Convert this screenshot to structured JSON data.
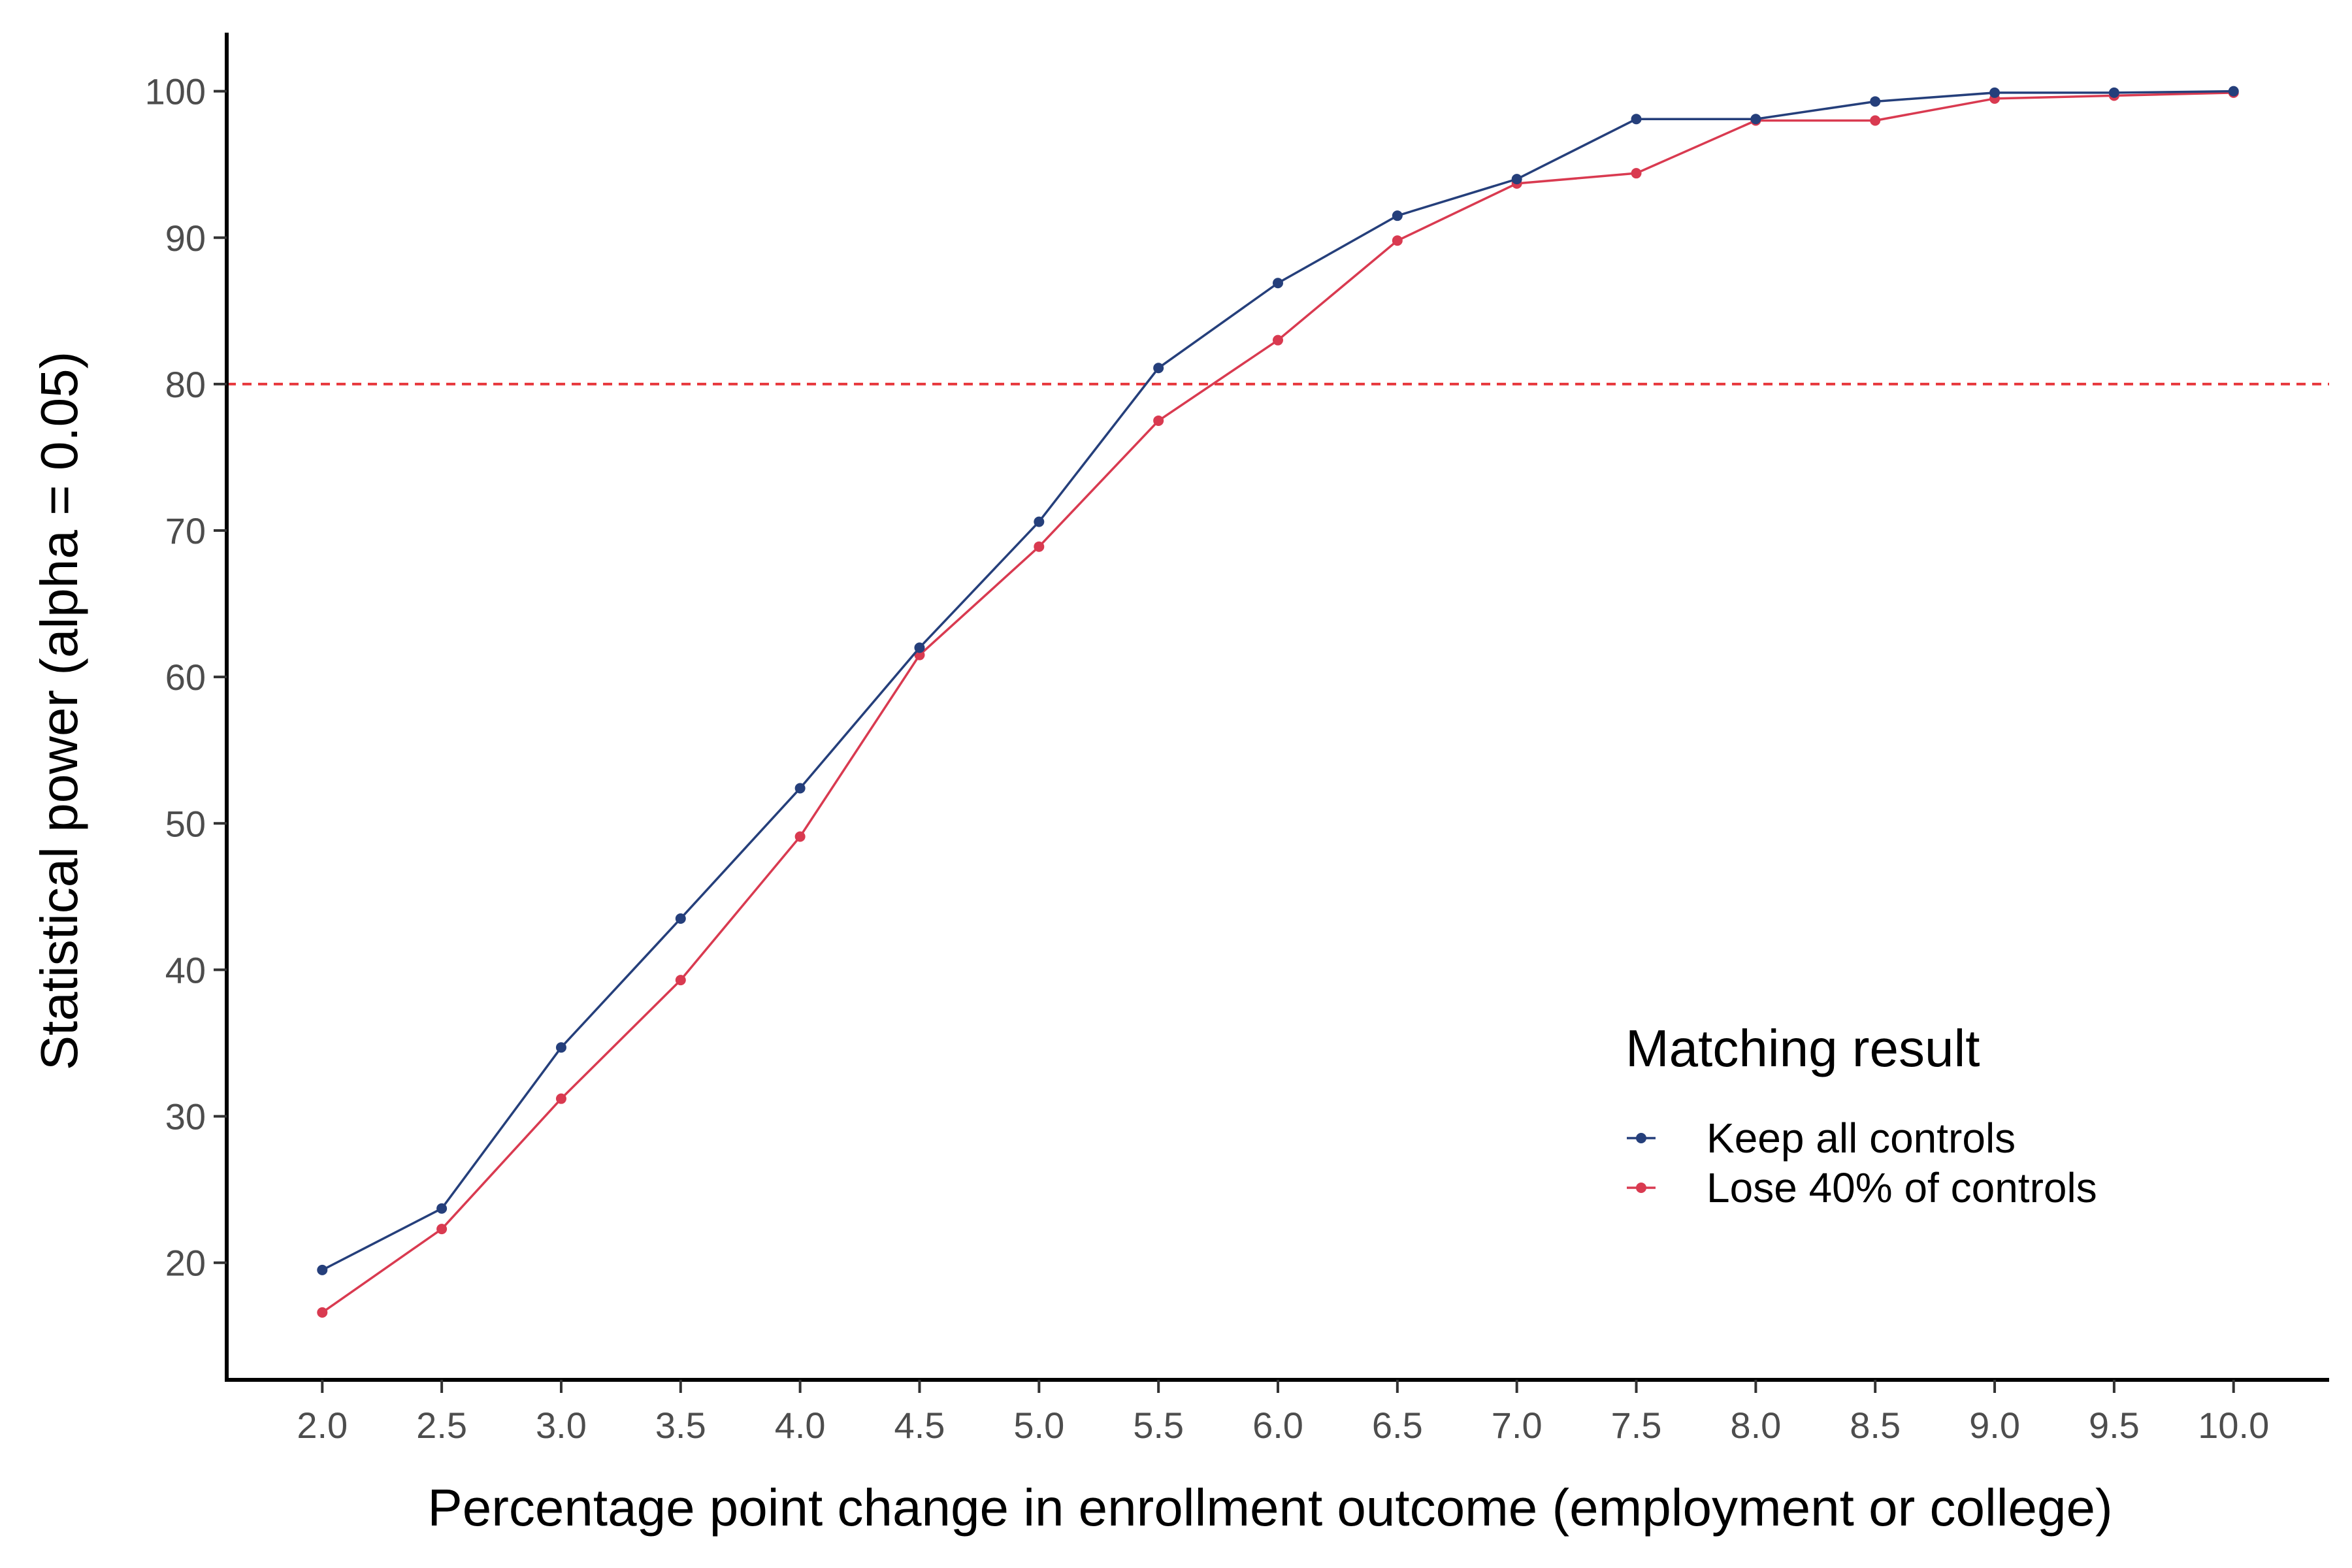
{
  "chart_data": {
    "type": "line",
    "xlabel": "Percentage point change in enrollment outcome (employment or college)",
    "ylabel": "Statistical power (alpha = 0.05)",
    "x": [
      2.0,
      2.5,
      3.0,
      3.5,
      4.0,
      4.5,
      5.0,
      5.5,
      6.0,
      6.5,
      7.0,
      7.5,
      8.0,
      8.5,
      9.0,
      9.5,
      10.0
    ],
    "x_tick_labels": [
      "2.0",
      "2.5",
      "3.0",
      "3.5",
      "4.0",
      "4.5",
      "5.0",
      "5.5",
      "6.0",
      "6.5",
      "7.0",
      "7.5",
      "8.0",
      "8.5",
      "9.0",
      "9.5",
      "10.0"
    ],
    "y_ticks": [
      20,
      30,
      40,
      50,
      60,
      70,
      80,
      90,
      100
    ],
    "y_tick_labels": [
      "20",
      "30",
      "40",
      "50",
      "60",
      "70",
      "80",
      "90",
      "100"
    ],
    "xlim": [
      1.6,
      10.4
    ],
    "ylim": [
      12,
      104
    ],
    "grid": false,
    "reference_line": {
      "y": 80,
      "style": "dashed",
      "color": "#e8383d"
    },
    "legend": {
      "title": "Matching result",
      "placement": "bottom-right"
    },
    "series": [
      {
        "name": "Keep all controls",
        "color": "#253f7b",
        "values": [
          19.5,
          23.7,
          34.7,
          43.5,
          52.4,
          62.0,
          70.6,
          81.1,
          86.9,
          91.5,
          94.0,
          98.1,
          98.1,
          99.3,
          99.9,
          99.9,
          100.0
        ]
      },
      {
        "name": "Lose 40% of controls",
        "color": "#d93a50",
        "values": [
          16.6,
          22.3,
          31.2,
          39.3,
          49.1,
          61.5,
          68.9,
          77.5,
          83.0,
          89.8,
          93.7,
          94.4,
          98.0,
          98.0,
          99.5,
          99.7,
          99.9
        ]
      }
    ]
  }
}
